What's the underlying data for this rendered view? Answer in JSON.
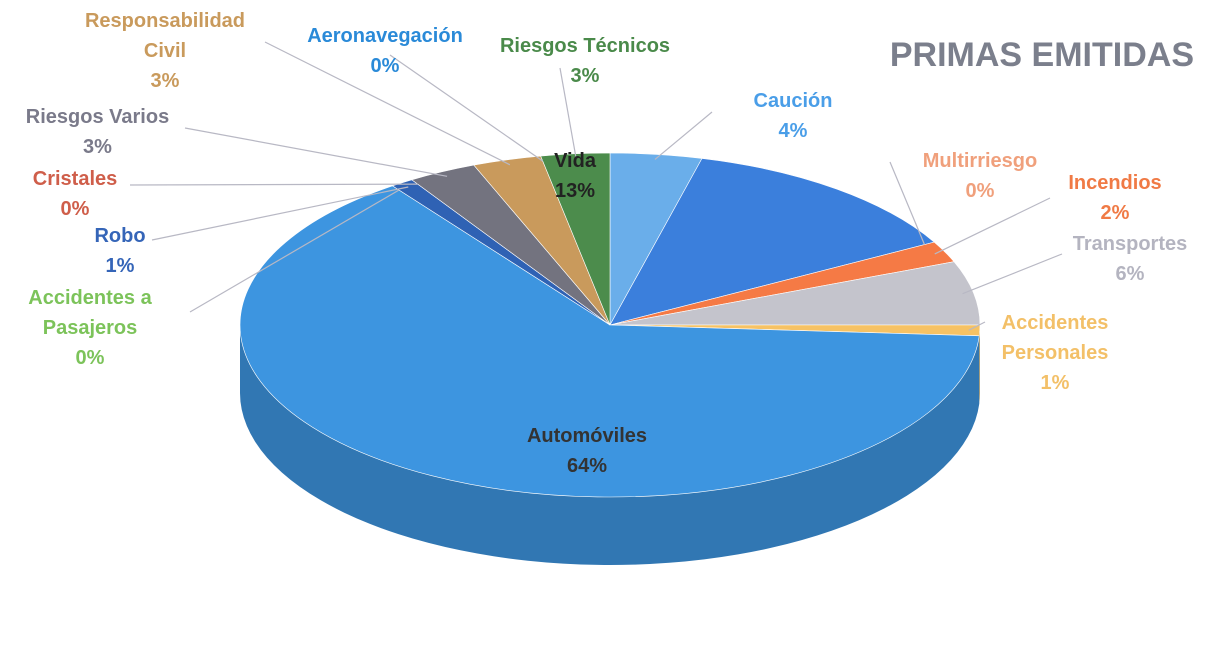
{
  "chart_data": {
    "type": "pie",
    "title": "PRIMAS EMITIDAS",
    "categories": [
      "Caución",
      "Vida",
      "Multirriesgo",
      "Incendios",
      "Transportes",
      "Accidentes Personales",
      "Automóviles",
      "Accidentes a Pasajeros",
      "Robo",
      "Cristales",
      "Riesgos Varios",
      "Responsabilidad Civil",
      "Aeronavegación",
      "Riesgos Técnicos"
    ],
    "values": [
      4,
      13,
      0,
      2,
      6,
      1,
      64,
      0,
      1,
      0,
      3,
      3,
      0,
      3
    ],
    "value_labels": [
      "4%",
      "13%",
      "0%",
      "2%",
      "6%",
      "1%",
      "64%",
      "0%",
      "1%",
      "0%",
      "3%",
      "3%",
      "0%",
      "3%"
    ],
    "colors": [
      "#6aaeea",
      "#3b7fdc",
      "#f4a582",
      "#f57a45",
      "#c4c4cc",
      "#f6c264",
      "#3d95e0",
      "#7cc35a",
      "#2f62b4",
      "#d0604c",
      "#73737f",
      "#c99a5c",
      "#2a8ad8",
      "#4c8c4c"
    ],
    "label_colors": [
      "#4a9ee8",
      "#222222",
      "#f0a07c",
      "#f07a45",
      "#b4b4c0",
      "#f3c068",
      "#333333",
      "#7cc35a",
      "#3565b8",
      "#cf5e4a",
      "#7a7a8a",
      "#c99a5c",
      "#2a8ad8",
      "#4a8a4a"
    ]
  }
}
